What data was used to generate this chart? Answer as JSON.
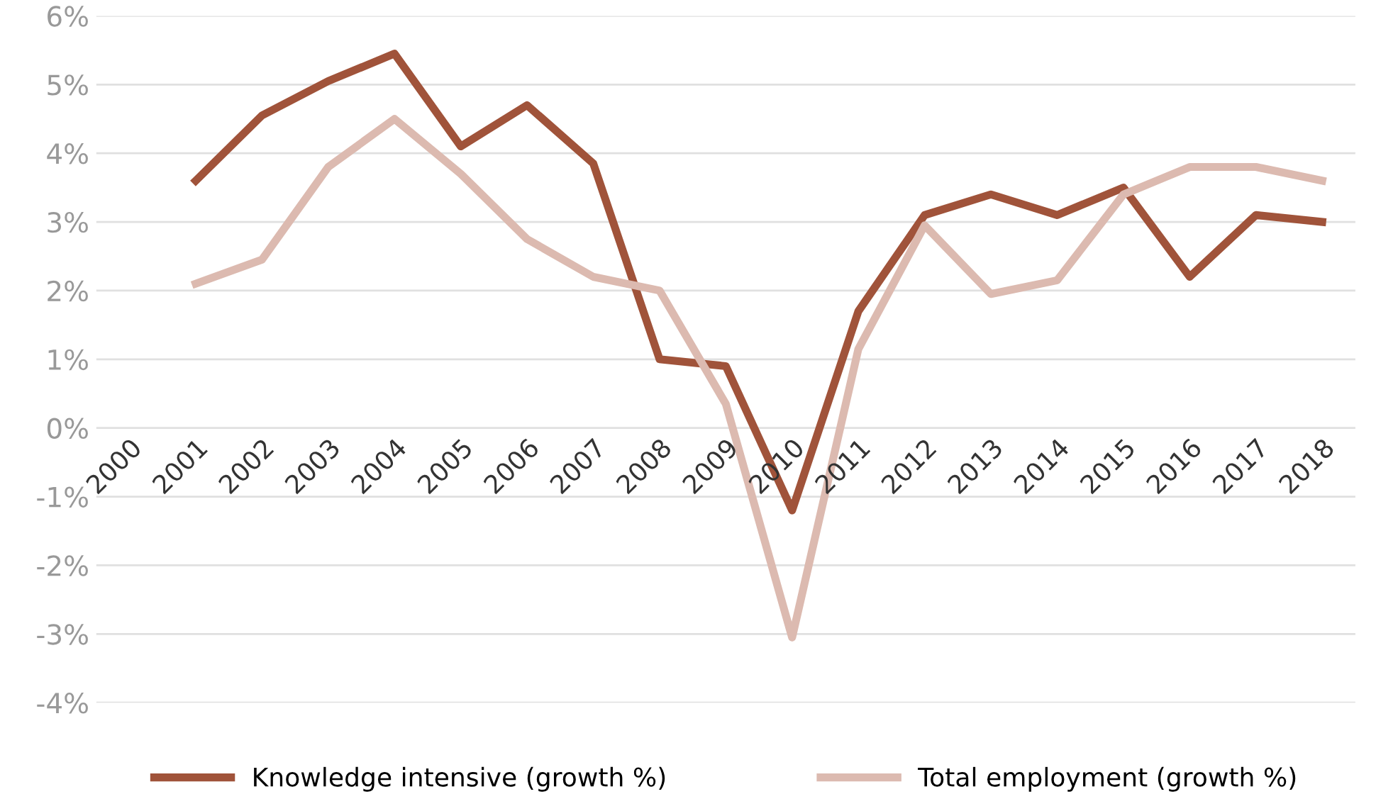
{
  "chart_data": {
    "type": "line",
    "categories": [
      "2000",
      "2001",
      "2002",
      "2003",
      "2004",
      "2005",
      "2006",
      "2007",
      "2008",
      "2009",
      "2010",
      "2011",
      "2012",
      "2013",
      "2014",
      "2015",
      "2016",
      "2017",
      "2018"
    ],
    "series": [
      {
        "name": "Knowledge intensive (growth %)",
        "color": "#a0533a",
        "values": [
          null,
          3.6,
          4.55,
          5.05,
          5.45,
          4.1,
          4.7,
          3.85,
          1.0,
          0.9,
          -1.2,
          1.7,
          3.1,
          3.4,
          3.1,
          3.5,
          2.2,
          3.1,
          3.0
        ]
      },
      {
        "name": "Total employment (growth %)",
        "color": "#dcbab0",
        "values": [
          null,
          2.1,
          2.45,
          3.8,
          4.5,
          3.7,
          2.75,
          2.2,
          2.0,
          0.35,
          -3.05,
          1.15,
          2.95,
          1.95,
          2.15,
          3.4,
          3.8,
          3.8,
          3.6
        ]
      }
    ],
    "ylim": [
      -4,
      6
    ],
    "yticks": [
      {
        "value": -4,
        "label": "-4%"
      },
      {
        "value": -3,
        "label": "-3%"
      },
      {
        "value": -2,
        "label": "-2%"
      },
      {
        "value": -1,
        "label": "-1%"
      },
      {
        "value": 0,
        "label": "0%"
      },
      {
        "value": 1,
        "label": "1%"
      },
      {
        "value": 2,
        "label": "2%"
      },
      {
        "value": 3,
        "label": "3%"
      },
      {
        "value": 4,
        "label": "4%"
      },
      {
        "value": 5,
        "label": "5%"
      },
      {
        "value": 6,
        "label": "6%"
      }
    ],
    "grid": "y",
    "legend": "bottom",
    "marker": "none",
    "line_style": "solid"
  }
}
